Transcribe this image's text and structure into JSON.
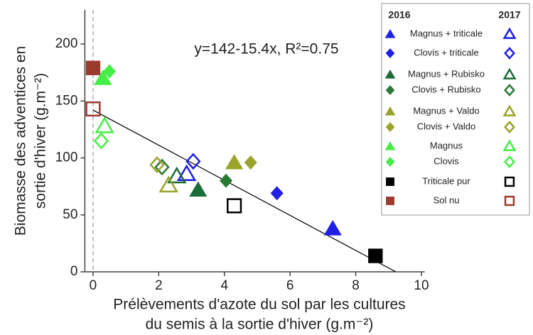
{
  "chart_data": {
    "type": "scatter",
    "annotation": "y=142-15.4x, R²=0.75",
    "fit": {
      "intercept": 142,
      "slope": -15.4
    },
    "reference_line_x": 0,
    "x_label": [
      "Prélèvements d'azote du sol par les cultures",
      "du semis à la sortie d'hiver (g.m⁻²)"
    ],
    "y_label": [
      "Biomasse des adventices en",
      "sortie d'hiver (g.m⁻²)"
    ],
    "xlim": [
      -0.25,
      10.1
    ],
    "ylim": [
      0,
      230
    ],
    "xticks": [
      0,
      2,
      4,
      6,
      8,
      10
    ],
    "yticks": [
      0,
      50,
      100,
      150,
      200
    ],
    "legend_headers": [
      "2016",
      "2017"
    ],
    "series": [
      {
        "name": "Magnus + triticale",
        "color": "#1f1fe6",
        "marker": "triangle",
        "x": [
          7.3,
          2.85
        ],
        "y": [
          38,
          86
        ]
      },
      {
        "name": "Clovis + triticale",
        "color": "#1f1fe6",
        "marker": "diamond",
        "x": [
          5.6,
          3.05
        ],
        "y": [
          69,
          97
        ]
      },
      {
        "name": "Magnus + Rubisko",
        "color": "#1c6b3a",
        "marker": "triangle",
        "x": [
          3.2,
          2.55
        ],
        "y": [
          72,
          84
        ]
      },
      {
        "name": "Clovis + Rubisko",
        "color": "#2a7a35",
        "marker": "diamond",
        "x": [
          4.05,
          2.1
        ],
        "y": [
          80,
          92
        ]
      },
      {
        "name": "Magnus + Valdo",
        "color": "#9aa32a",
        "marker": "triangle",
        "x": [
          4.3,
          2.3
        ],
        "y": [
          96,
          76
        ]
      },
      {
        "name": "Clovis + Valdo",
        "color": "#9aa32a",
        "marker": "diamond",
        "x": [
          4.8,
          1.95
        ],
        "y": [
          96,
          94
        ]
      },
      {
        "name": "Magnus",
        "color": "#44ee44",
        "marker": "triangle",
        "x": [
          0.3,
          0.35
        ],
        "y": [
          170,
          128
        ]
      },
      {
        "name": "Clovis",
        "color": "#44ee44",
        "marker": "diamond",
        "x": [
          0.5,
          0.25
        ],
        "y": [
          176,
          115
        ]
      },
      {
        "name": "Triticale pur",
        "color": "#000000",
        "marker": "square",
        "x": [
          8.6,
          4.3
        ],
        "y": [
          14,
          58
        ]
      },
      {
        "name": "Sol nu",
        "color": "#9b3b30",
        "marker": "square",
        "x": [
          0,
          0
        ],
        "y": [
          179,
          143
        ]
      }
    ]
  }
}
